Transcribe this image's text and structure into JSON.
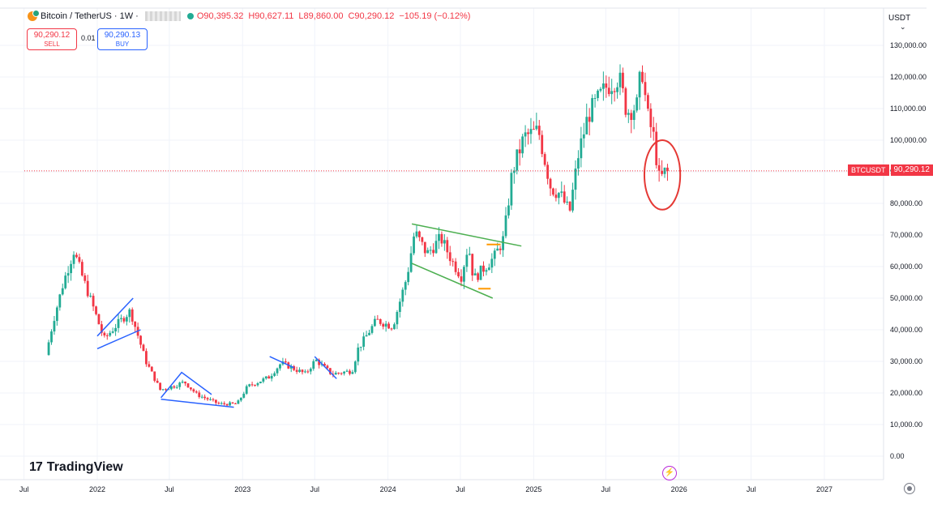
{
  "header": {
    "symbol_title": "Bitcoin / TetherUS · 1W ·",
    "ohlc": {
      "open": "O90,395.32",
      "high": "H90,627.11",
      "low": "L89,860.00",
      "close": "C90,290.12",
      "change": "−105.19 (−0.12%)"
    }
  },
  "trade": {
    "sell_price": "90,290.12",
    "sell_label": "SELL",
    "spread": "0.01",
    "buy_price": "90,290.13",
    "buy_label": "BUY"
  },
  "currency": "USDT",
  "symbol_label": "BTCUSDT",
  "current_price_label": "90,290.12",
  "brand": "TradingView",
  "colors": {
    "up": "#22ab94",
    "down": "#f23645",
    "pattern_blue": "#2962ff",
    "pattern_green": "#4caf50",
    "level_orange": "#ff9800",
    "circle_red": "#e53935"
  },
  "icons": [
    "bitcoin-icon",
    "bolt-icon",
    "settings-icon",
    "chevron-down-icon"
  ],
  "chart_data": {
    "type": "candlestick",
    "timeframe": "1W",
    "current_price": 90290.12,
    "ylim": [
      0,
      135000
    ],
    "y_ticks": [
      "130,000.00",
      "120,000.00",
      "110,000.00",
      "100,000.00",
      "90,000.00",
      "80,000.00",
      "70,000.00",
      "60,000.00",
      "50,000.00",
      "40,000.00",
      "30,000.00",
      "20,000.00",
      "10,000.00",
      "0.00"
    ],
    "y_tick_values": [
      130000,
      120000,
      110000,
      100000,
      90000,
      80000,
      70000,
      60000,
      50000,
      40000,
      30000,
      20000,
      10000,
      0
    ],
    "x_range": [
      "2021-09-01",
      "2027-06-01"
    ],
    "x_ticks": [
      {
        "label": "Jul",
        "date": "2021-07-01"
      },
      {
        "label": "2022",
        "date": "2022-01-01"
      },
      {
        "label": "Jul",
        "date": "2022-07-01"
      },
      {
        "label": "2023",
        "date": "2023-01-01"
      },
      {
        "label": "Jul",
        "date": "2023-07-01"
      },
      {
        "label": "2024",
        "date": "2024-01-01"
      },
      {
        "label": "Jul",
        "date": "2024-07-01"
      },
      {
        "label": "2025",
        "date": "2025-01-01"
      },
      {
        "label": "Jul",
        "date": "2025-07-01"
      },
      {
        "label": "2026",
        "date": "2026-01-01"
      },
      {
        "label": "Jul",
        "date": "2026-07-01"
      },
      {
        "label": "2027",
        "date": "2027-01-01"
      }
    ],
    "price_path": [
      [
        "2021-09-01",
        32000
      ],
      [
        "2021-09-20",
        43000
      ],
      [
        "2021-10-15",
        55000
      ],
      [
        "2021-11-10",
        65000
      ],
      [
        "2021-12-01",
        57000
      ],
      [
        "2022-01-01",
        46000
      ],
      [
        "2022-01-25",
        37000
      ],
      [
        "2022-03-01",
        42000
      ],
      [
        "2022-04-01",
        46000
      ],
      [
        "2022-05-10",
        30000
      ],
      [
        "2022-06-15",
        21000
      ],
      [
        "2022-07-15",
        22000
      ],
      [
        "2022-08-15",
        23500
      ],
      [
        "2022-09-15",
        19500
      ],
      [
        "2022-11-10",
        16500
      ],
      [
        "2022-12-25",
        16500
      ],
      [
        "2023-01-20",
        22000
      ],
      [
        "2023-03-15",
        25000
      ],
      [
        "2023-04-15",
        29500
      ],
      [
        "2023-06-15",
        26000
      ],
      [
        "2023-07-10",
        30500
      ],
      [
        "2023-08-20",
        26000
      ],
      [
        "2023-10-10",
        27000
      ],
      [
        "2023-10-25",
        34000
      ],
      [
        "2023-12-10",
        43000
      ],
      [
        "2024-01-20",
        41000
      ],
      [
        "2024-02-25",
        57000
      ],
      [
        "2024-03-15",
        71000
      ],
      [
        "2024-04-15",
        64000
      ],
      [
        "2024-05-20",
        69000
      ],
      [
        "2024-06-20",
        61000
      ],
      [
        "2024-07-10",
        57000
      ],
      [
        "2024-07-28",
        67000
      ],
      [
        "2024-08-10",
        56000
      ],
      [
        "2024-09-01",
        59000
      ],
      [
        "2024-10-01",
        63000
      ],
      [
        "2024-10-25",
        69000
      ],
      [
        "2024-11-15",
        90000
      ],
      [
        "2024-12-15",
        101000
      ],
      [
        "2025-01-20",
        103000
      ],
      [
        "2025-02-20",
        85000
      ],
      [
        "2025-03-15",
        83000
      ],
      [
        "2025-04-08",
        77000
      ],
      [
        "2025-05-01",
        96000
      ],
      [
        "2025-05-25",
        108000
      ],
      [
        "2025-07-10",
        117000
      ],
      [
        "2025-08-10",
        120000
      ],
      [
        "2025-08-30",
        109000
      ],
      [
        "2025-09-25",
        111000
      ],
      [
        "2025-10-06",
        124000
      ],
      [
        "2025-10-20",
        108000
      ],
      [
        "2025-11-05",
        101000
      ],
      [
        "2025-11-20",
        87000
      ],
      [
        "2025-12-05",
        90290
      ]
    ],
    "annotations": [
      {
        "type": "channel",
        "color": "blue",
        "lines": [
          [
            [
              "2022-01-01",
              38000
            ],
            [
              "2022-04-01",
              50000
            ]
          ],
          [
            [
              "2022-01-01",
              34000
            ],
            [
              "2022-04-20",
              40000
            ]
          ]
        ]
      },
      {
        "type": "wedge",
        "color": "blue",
        "lines": [
          [
            [
              "2022-06-10",
              18500
            ],
            [
              "2022-08-01",
              26500
            ],
            [
              "2022-10-15",
              19500
            ]
          ],
          [
            [
              "2022-06-10",
              18000
            ],
            [
              "2022-12-10",
              15500
            ]
          ]
        ]
      },
      {
        "type": "channel",
        "color": "blue",
        "lines": [
          [
            [
              "2023-03-10",
              31500
            ],
            [
              "2023-05-10",
              28000
            ]
          ],
          [
            [
              "2023-07-01",
              31500
            ],
            [
              "2023-08-25",
              24500
            ]
          ]
        ]
      },
      {
        "type": "channel",
        "color": "green",
        "lines": [
          [
            [
              "2024-03-01",
              73500
            ],
            [
              "2024-12-01",
              66500
            ]
          ],
          [
            [
              "2024-03-01",
              61000
            ],
            [
              "2024-09-20",
              50000
            ]
          ]
        ]
      },
      {
        "type": "level",
        "color": "orange",
        "lines": [
          [
            [
              "2024-09-05",
              67000
            ],
            [
              "2024-10-10",
              67000
            ]
          ],
          [
            [
              "2024-08-15",
              53000
            ],
            [
              "2024-09-15",
              53000
            ]
          ]
        ]
      },
      {
        "type": "circle",
        "color": "red",
        "center": [
          "2025-11-20",
          89000
        ],
        "radius_x_days": 45,
        "radius_y": 11000
      }
    ]
  }
}
